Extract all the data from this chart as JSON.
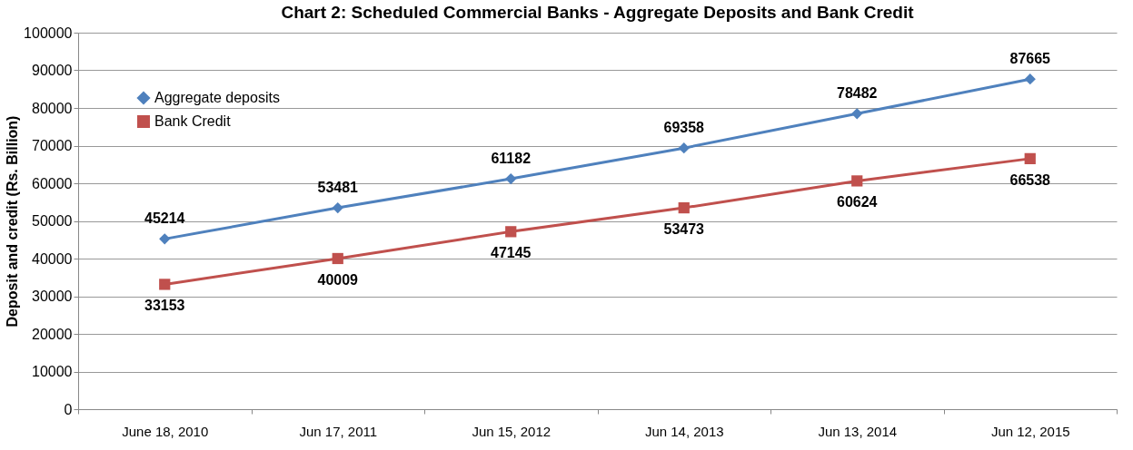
{
  "chart_data": {
    "type": "line",
    "title": "Chart 2: Scheduled Commercial Banks - Aggregate Deposits and Bank Credit",
    "ylabel": "Deposit and credit (Rs. Billion)",
    "categories": [
      "June 18, 2010",
      "Jun 17, 2011",
      "Jun 15, 2012",
      "Jun 14, 2013",
      "Jun 13, 2014",
      "Jun 12, 2015"
    ],
    "series": [
      {
        "name": "Aggregate deposits",
        "color": "#4f81bd",
        "marker": "diamond",
        "values": [
          45214,
          53481,
          61182,
          69358,
          78482,
          87665
        ]
      },
      {
        "name": "Bank Credit",
        "color": "#c0504d",
        "marker": "square",
        "values": [
          33153,
          40009,
          47145,
          53473,
          60624,
          66538
        ]
      }
    ],
    "ylim": [
      0,
      100000
    ],
    "yticks": [
      0,
      10000,
      20000,
      30000,
      40000,
      50000,
      60000,
      70000,
      80000,
      90000,
      100000
    ],
    "grid": "y",
    "legend": "top left",
    "data_labels": true,
    "line_style": "solid"
  }
}
